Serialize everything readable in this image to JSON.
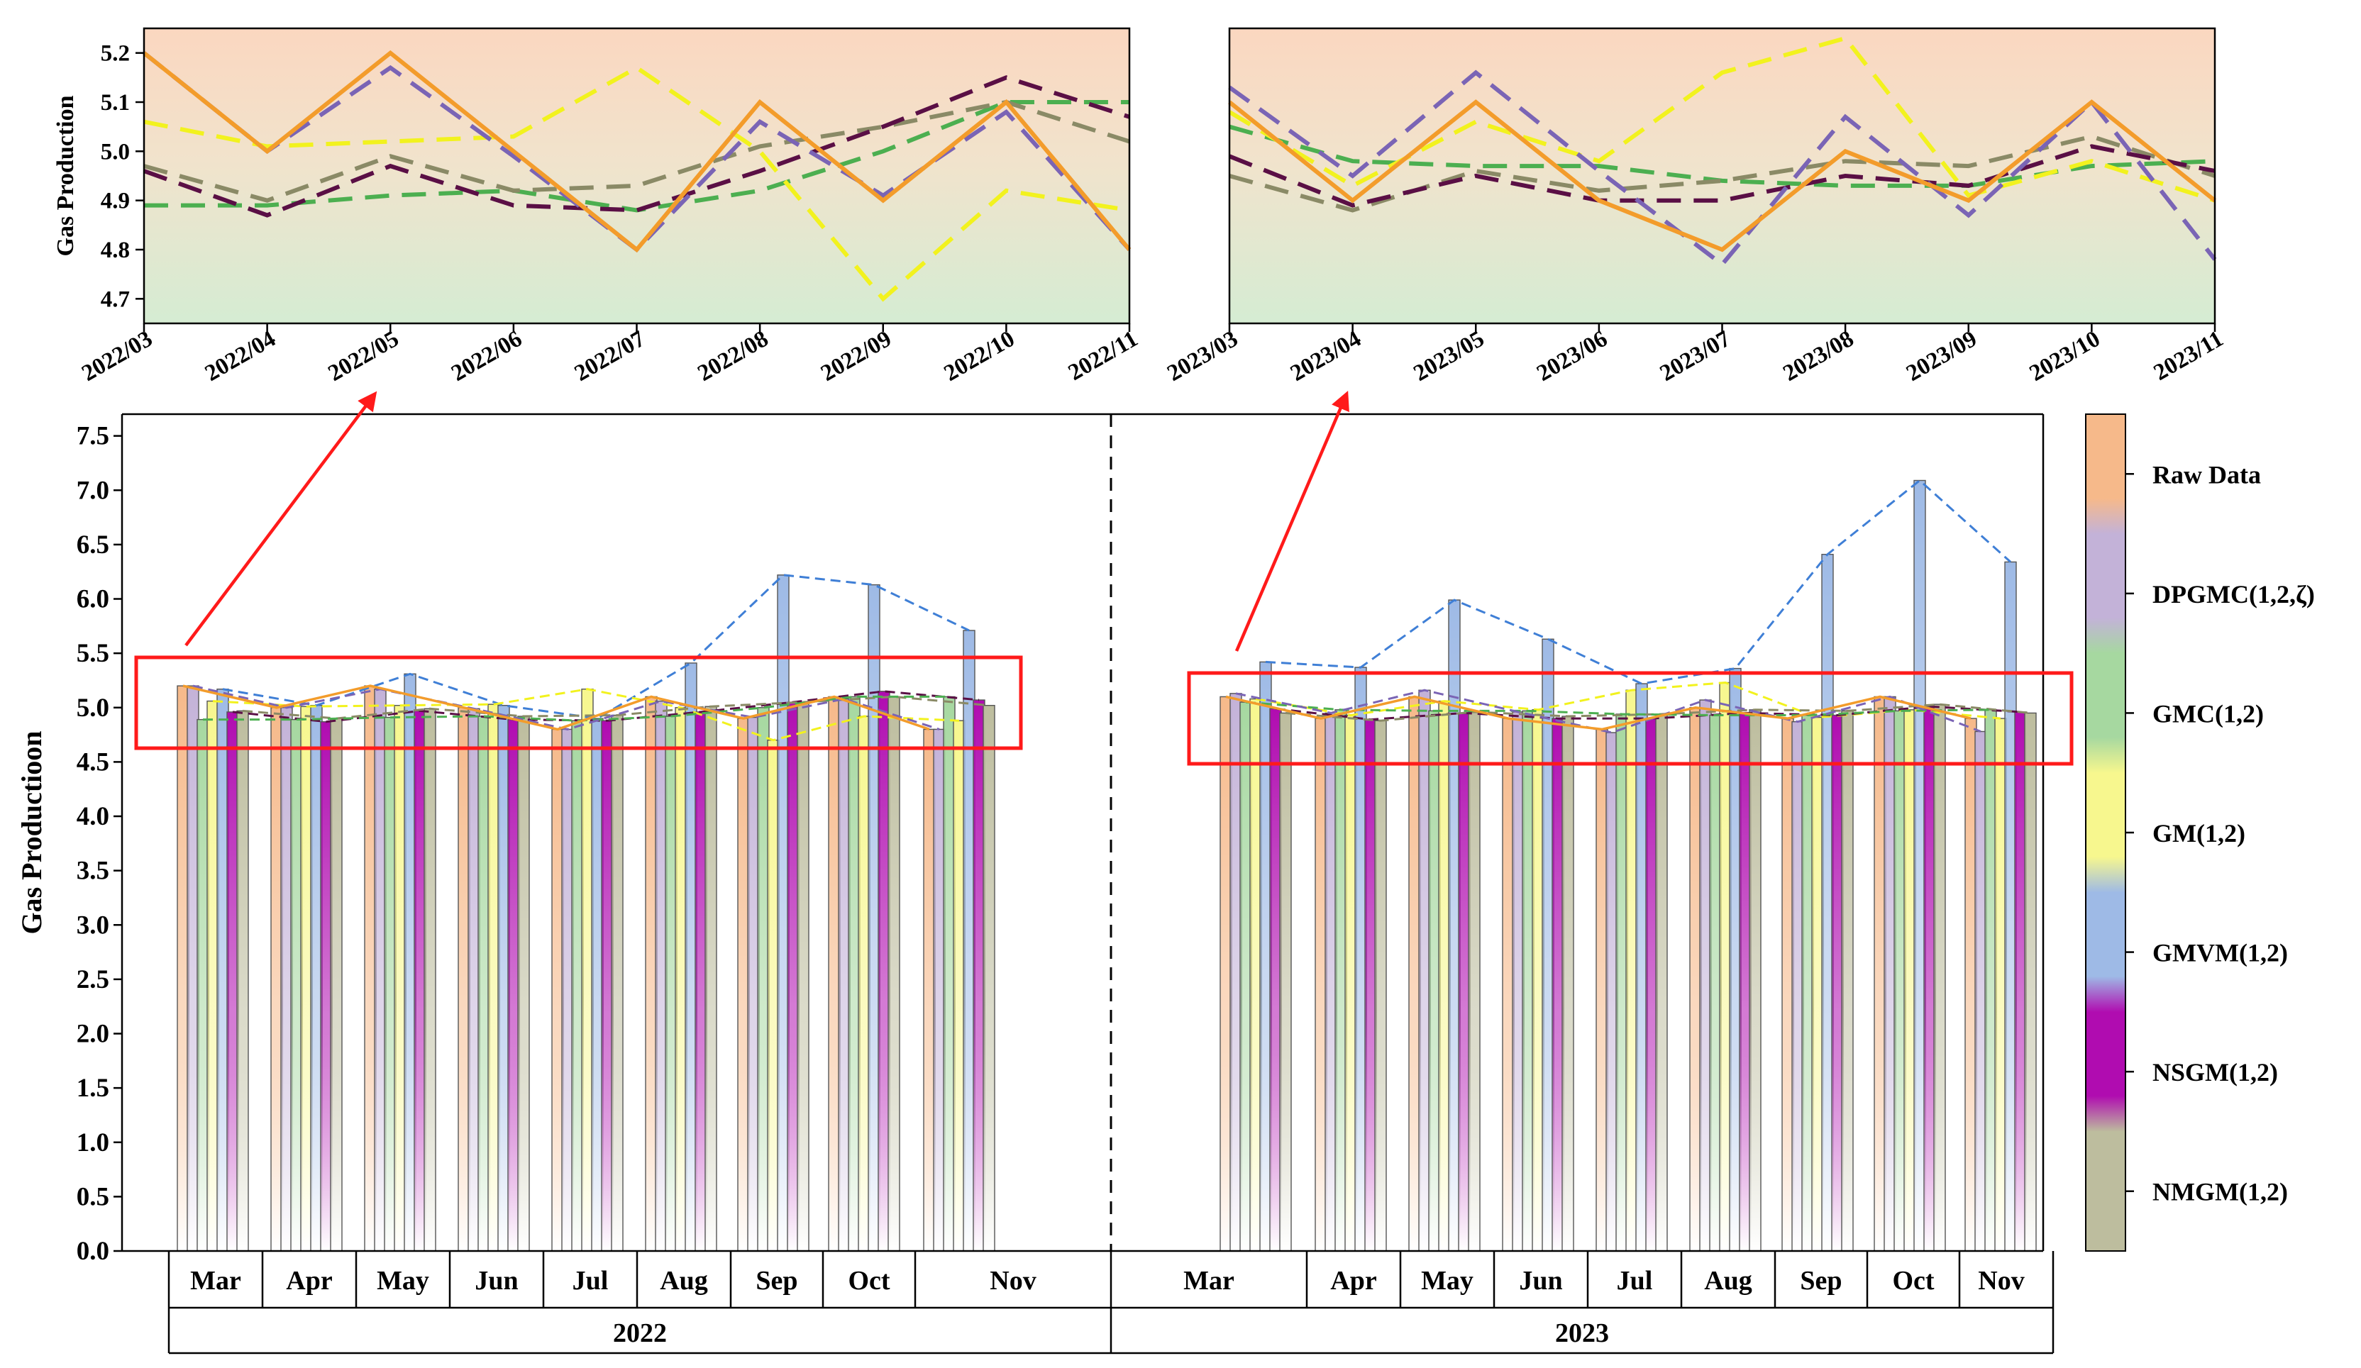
{
  "colors": {
    "raw": "#f39c2b",
    "dpgmc": "#7a64b5",
    "gmc": "#4caf50",
    "gm": "#f2f21e",
    "gmvm": "#3f7fd6",
    "nsgm": "#5a0f45",
    "nmgm": "#8a8a66",
    "highlight": "#ff1a1a",
    "bar_raw": "#f6b98a",
    "bar_dpgmc": "#c3b2d8",
    "bar_gmc": "#a6d8a0",
    "bar_gm": "#f7f78e",
    "bar_gmvm": "#9ebae6",
    "bar_nsgm": "#b00cb0",
    "bar_nmgm": "#bdbd9e"
  },
  "chart_data": [
    {
      "type": "line",
      "panel": "top-left",
      "ylabel": "Gas Production",
      "ylim": [
        4.65,
        5.25
      ],
      "yticks": [
        "4.7",
        "4.8",
        "4.9",
        "5.0",
        "5.1",
        "5.2"
      ],
      "ytick_values": [
        4.7,
        4.8,
        4.9,
        5.0,
        5.1,
        5.2
      ],
      "categories": [
        "2022/03",
        "2022/04",
        "2022/05",
        "2022/06",
        "2022/07",
        "2022/08",
        "2022/09",
        "2022/10",
        "2022/11"
      ],
      "series": [
        {
          "name": "GMC(1,2)",
          "key": "gmc",
          "values": [
            4.89,
            4.89,
            4.91,
            4.92,
            4.88,
            4.92,
            5.0,
            5.1,
            5.1
          ]
        },
        {
          "name": "NMGM(1,2)",
          "key": "nmgm",
          "values": [
            4.97,
            4.9,
            4.99,
            4.92,
            4.93,
            5.01,
            5.05,
            5.1,
            5.02
          ]
        },
        {
          "name": "NSGM(1,2)",
          "key": "nsgm",
          "values": [
            4.96,
            4.87,
            4.97,
            4.89,
            4.88,
            4.96,
            5.05,
            5.15,
            5.07
          ]
        },
        {
          "name": "GM(1,2)",
          "key": "gm",
          "values": [
            5.06,
            5.01,
            5.02,
            5.03,
            5.17,
            5.0,
            4.7,
            4.92,
            4.88
          ]
        },
        {
          "name": "DPGMC(1,2,ζ)",
          "key": "dpgmc",
          "values": [
            5.2,
            5.0,
            5.17,
            4.99,
            4.8,
            5.06,
            4.91,
            5.08,
            4.8
          ]
        },
        {
          "name": "Raw Data",
          "key": "raw",
          "values": [
            5.2,
            5.0,
            5.2,
            5.0,
            4.8,
            5.1,
            4.9,
            5.1,
            4.8
          ]
        }
      ]
    },
    {
      "type": "line",
      "panel": "top-right",
      "ylim": [
        4.65,
        5.25
      ],
      "categories": [
        "2023/03",
        "2023/04",
        "2023/05",
        "2023/06",
        "2023/07",
        "2023/08",
        "2023/09",
        "2023/10",
        "2023/11"
      ],
      "series": [
        {
          "name": "GMC(1,2)",
          "key": "gmc",
          "values": [
            5.05,
            4.98,
            4.97,
            4.97,
            4.94,
            4.93,
            4.93,
            4.97,
            4.98
          ]
        },
        {
          "name": "NMGM(1,2)",
          "key": "nmgm",
          "values": [
            4.95,
            4.88,
            4.96,
            4.92,
            4.94,
            4.98,
            4.97,
            5.03,
            4.95
          ]
        },
        {
          "name": "NSGM(1,2)",
          "key": "nsgm",
          "values": [
            4.99,
            4.89,
            4.95,
            4.9,
            4.9,
            4.95,
            4.93,
            5.01,
            4.96
          ]
        },
        {
          "name": "GM(1,2)",
          "key": "gm",
          "values": [
            5.08,
            4.93,
            5.06,
            4.98,
            5.16,
            5.23,
            4.91,
            4.98,
            4.9
          ]
        },
        {
          "name": "DPGMC(1,2,ζ)",
          "key": "dpgmc",
          "values": [
            5.13,
            4.95,
            5.16,
            4.96,
            4.77,
            5.07,
            4.87,
            5.1,
            4.78
          ]
        },
        {
          "name": "Raw Data",
          "key": "raw",
          "values": [
            5.1,
            4.9,
            5.1,
            4.9,
            4.8,
            5.0,
            4.9,
            5.1,
            4.9
          ]
        }
      ]
    },
    {
      "type": "bar",
      "panel": "bottom",
      "ylabel": "Gas Productioon",
      "ylim": [
        0,
        7.7
      ],
      "yticks": [
        "0.0",
        "0.5",
        "1.0",
        "1.5",
        "2.0",
        "2.5",
        "3.0",
        "3.5",
        "4.0",
        "4.5",
        "5.0",
        "5.5",
        "6.0",
        "6.5",
        "7.0",
        "7.5"
      ],
      "ytick_values": [
        0,
        0.5,
        1.0,
        1.5,
        2.0,
        2.5,
        3.0,
        3.5,
        4.0,
        4.5,
        5.0,
        5.5,
        6.0,
        6.5,
        7.0,
        7.5
      ],
      "years": [
        "2022",
        "2023"
      ],
      "months_2022": [
        "Mar",
        "Apr",
        "May",
        "Jun",
        "Jul",
        "Aug",
        "Sep",
        "Oct",
        "Nov"
      ],
      "months_2023": [
        "Mar",
        "Apr",
        "May",
        "Jun",
        "Jul",
        "Aug",
        "Sep",
        "Oct",
        "Nov"
      ],
      "series_order": [
        "raw",
        "dpgmc",
        "gmc",
        "gm",
        "gmvm",
        "nsgm",
        "nmgm"
      ],
      "values_2022": {
        "raw": [
          5.2,
          5.0,
          5.2,
          5.0,
          4.8,
          5.1,
          4.9,
          5.1,
          4.8
        ],
        "dpgmc": [
          5.2,
          5.0,
          5.17,
          4.99,
          4.8,
          5.06,
          4.91,
          5.08,
          4.8
        ],
        "gmc": [
          4.89,
          4.89,
          4.91,
          4.92,
          4.88,
          4.92,
          5.0,
          5.1,
          5.1
        ],
        "gm": [
          5.06,
          5.01,
          5.02,
          5.03,
          5.17,
          5.0,
          4.7,
          4.92,
          4.88
        ],
        "gmvm": [
          5.17,
          5.02,
          5.31,
          5.02,
          4.9,
          5.41,
          6.22,
          6.13,
          5.71
        ],
        "nsgm": [
          4.96,
          4.87,
          4.97,
          4.89,
          4.88,
          4.96,
          5.05,
          5.15,
          5.07
        ],
        "nmgm": [
          4.97,
          4.9,
          4.99,
          4.92,
          4.93,
          5.01,
          5.05,
          5.1,
          5.02
        ]
      },
      "values_2023": {
        "raw": [
          5.1,
          4.9,
          5.1,
          4.9,
          4.8,
          5.0,
          4.9,
          5.1,
          4.9
        ],
        "dpgmc": [
          5.13,
          4.95,
          5.16,
          4.96,
          4.77,
          5.07,
          4.87,
          5.1,
          4.78
        ],
        "gmc": [
          5.05,
          4.98,
          4.97,
          4.97,
          4.94,
          4.93,
          4.93,
          4.97,
          4.98
        ],
        "gm": [
          5.08,
          4.93,
          5.06,
          4.98,
          5.16,
          5.23,
          4.91,
          4.98,
          4.9
        ],
        "gmvm": [
          5.42,
          5.37,
          5.99,
          5.63,
          5.22,
          5.36,
          6.41,
          7.09,
          6.34
        ],
        "nsgm": [
          4.99,
          4.89,
          4.95,
          4.9,
          4.9,
          4.95,
          4.93,
          5.01,
          4.96
        ],
        "nmgm": [
          4.95,
          4.88,
          4.96,
          4.92,
          4.94,
          4.98,
          4.97,
          5.03,
          4.95
        ]
      },
      "legend": [
        {
          "key": "raw",
          "label": "Raw Data"
        },
        {
          "key": "dpgmc",
          "label": "DPGMC(1,2,ζ)"
        },
        {
          "key": "gmc",
          "label": "GMC(1,2)"
        },
        {
          "key": "gm",
          "label": "GM(1,2)"
        },
        {
          "key": "gmvm",
          "label": "GMVM(1,2)"
        },
        {
          "key": "nsgm",
          "label": "NSGM(1,2)"
        },
        {
          "key": "nmgm",
          "label": "NMGM(1,2)"
        }
      ]
    }
  ]
}
